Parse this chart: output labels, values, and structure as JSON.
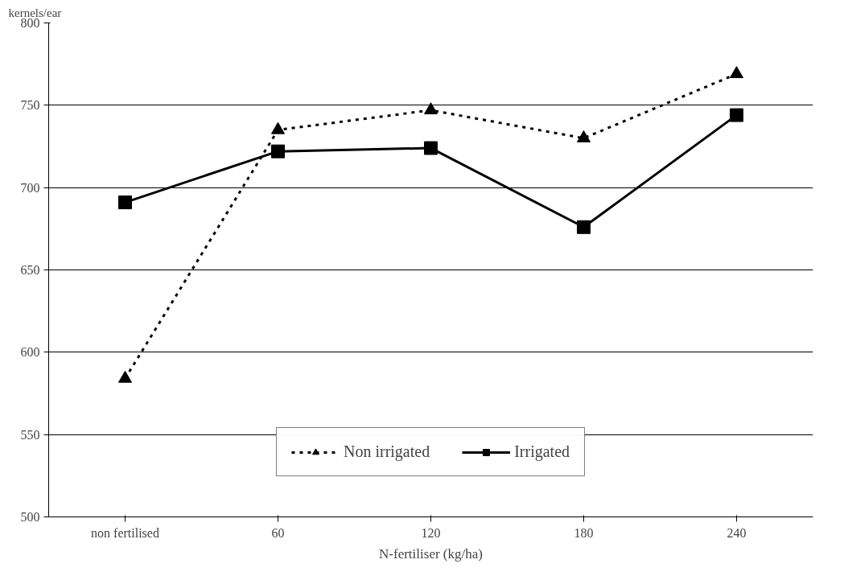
{
  "chart_data": {
    "type": "line",
    "ylabel": "kernels/ear",
    "xlabel": "N-fertiliser (kg/ha)",
    "categories": [
      "non fertilised",
      "60",
      "120",
      "180",
      "240"
    ],
    "series": [
      {
        "name": "Non irrigated",
        "color": "#000000",
        "marker": "triangle",
        "line_style": "dotted",
        "values": [
          584,
          735,
          747,
          730,
          769
        ]
      },
      {
        "name": "Irrigated",
        "color": "#000000",
        "marker": "square",
        "line_style": "solid",
        "values": [
          691,
          722,
          724,
          676,
          744
        ]
      }
    ],
    "ylim": [
      500,
      800
    ],
    "yticks": [
      500,
      550,
      600,
      650,
      700,
      750,
      800
    ],
    "grid": "y",
    "legend": "bottom"
  }
}
